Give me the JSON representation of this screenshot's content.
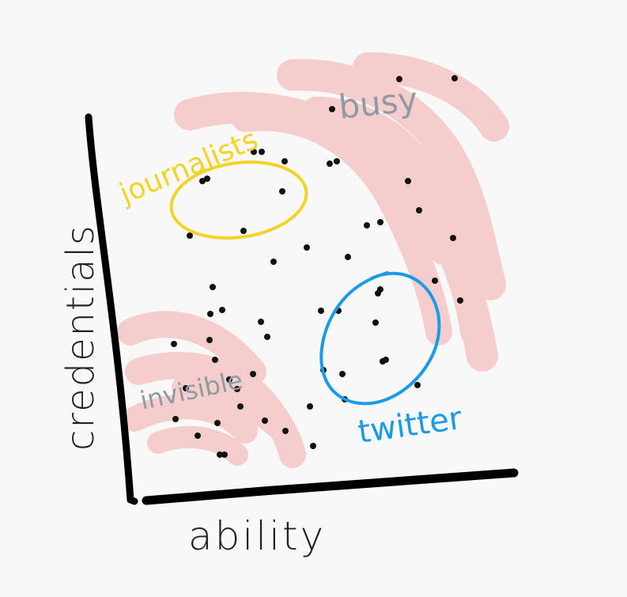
{
  "axes": {
    "x_label": "ability",
    "y_label": "credentials"
  },
  "groups": {
    "busy": {
      "label": "busy",
      "color": "#8f9aa3"
    },
    "journalists": {
      "label": "journalists",
      "color": "#f2d327"
    },
    "twitter": {
      "label": "twitter",
      "color": "#1a9be8"
    },
    "invisible": {
      "label": "invisible",
      "color": "#8f9aa3"
    }
  },
  "colors": {
    "highlight": "#f59a9a",
    "dots": "#111111",
    "axes": "#000000",
    "axis_label": "#222222"
  }
}
